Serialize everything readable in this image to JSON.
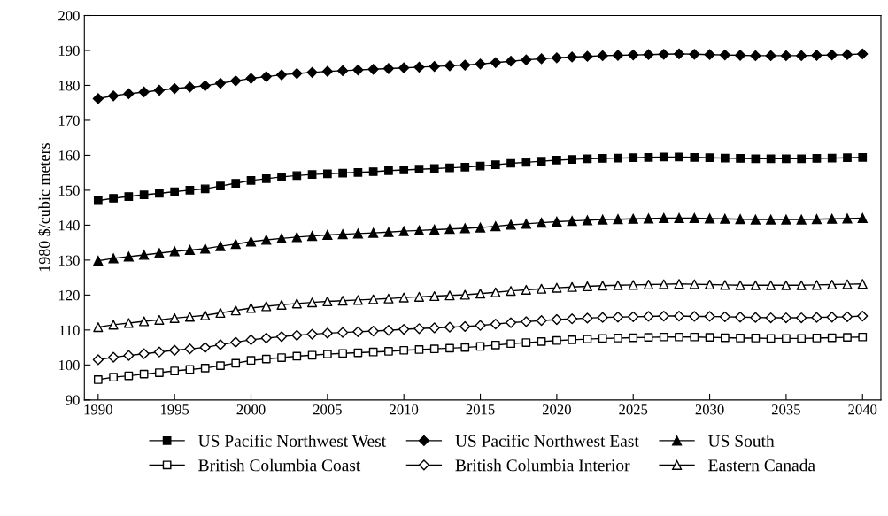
{
  "chart_data": {
    "type": "line",
    "ylabel": "1980 $/cubic meters",
    "x": [
      1990,
      1991,
      1992,
      1993,
      1994,
      1995,
      1996,
      1997,
      1998,
      1999,
      2000,
      2001,
      2002,
      2003,
      2004,
      2005,
      2006,
      2007,
      2008,
      2009,
      2010,
      2011,
      2012,
      2013,
      2014,
      2015,
      2016,
      2017,
      2018,
      2019,
      2020,
      2021,
      2022,
      2023,
      2024,
      2025,
      2026,
      2027,
      2028,
      2029,
      2030,
      2031,
      2032,
      2033,
      2034,
      2035,
      2036,
      2037,
      2038,
      2039,
      2040
    ],
    "xlim": [
      1989.1,
      2041.2
    ],
    "xticks": [
      1990,
      1995,
      2000,
      2005,
      2010,
      2015,
      2020,
      2025,
      2030,
      2035,
      2040
    ],
    "ylim": [
      90,
      200
    ],
    "yticks": [
      90,
      100,
      110,
      120,
      130,
      140,
      150,
      160,
      170,
      180,
      190,
      200
    ],
    "grid": false,
    "legend": "bottom",
    "line_style": "solid",
    "series": [
      {
        "name": "US Pacific Northwest West",
        "color": "#000000",
        "marker": "square",
        "values": [
          147,
          147.7,
          148.2,
          148.7,
          149.1,
          149.6,
          150,
          150.4,
          151.2,
          152,
          152.8,
          153.3,
          153.8,
          154.2,
          154.5,
          154.7,
          154.9,
          155.1,
          155.3,
          155.6,
          155.8,
          156,
          156.2,
          156.4,
          156.6,
          156.9,
          157.3,
          157.7,
          158,
          158.3,
          158.6,
          158.8,
          159,
          159.1,
          159.2,
          159.3,
          159.4,
          159.5,
          159.5,
          159.4,
          159.3,
          159.2,
          159.1,
          159,
          159,
          159,
          159,
          159.1,
          159.2,
          159.3,
          159.4
        ]
      },
      {
        "name": "US Pacific Northwest East",
        "color": "#000000",
        "marker": "diamond",
        "values": [
          176.2,
          177,
          177.6,
          178.1,
          178.6,
          179.1,
          179.5,
          179.9,
          180.6,
          181.3,
          182,
          182.5,
          183,
          183.4,
          183.7,
          184,
          184.2,
          184.4,
          184.6,
          184.8,
          185,
          185.2,
          185.4,
          185.6,
          185.8,
          186.1,
          186.5,
          186.9,
          187.3,
          187.6,
          187.9,
          188.1,
          188.3,
          188.5,
          188.6,
          188.7,
          188.8,
          188.9,
          189,
          188.9,
          188.8,
          188.7,
          188.6,
          188.5,
          188.5,
          188.5,
          188.5,
          188.6,
          188.7,
          188.8,
          189
        ]
      },
      {
        "name": "US South",
        "color": "#000000",
        "marker": "triangle",
        "values": [
          129.8,
          130.5,
          131,
          131.5,
          132,
          132.5,
          132.9,
          133.3,
          134,
          134.6,
          135.3,
          135.8,
          136.2,
          136.6,
          136.9,
          137.2,
          137.4,
          137.6,
          137.8,
          138,
          138.3,
          138.5,
          138.7,
          138.9,
          139.1,
          139.3,
          139.7,
          140.1,
          140.4,
          140.7,
          141,
          141.2,
          141.4,
          141.6,
          141.7,
          141.8,
          141.9,
          142,
          142,
          142,
          141.9,
          141.8,
          141.7,
          141.6,
          141.6,
          141.6,
          141.6,
          141.7,
          141.8,
          141.9,
          142
        ]
      },
      {
        "name": "British Columbia Coast",
        "color": "#000000",
        "marker": "square",
        "colors": [
          "#ffffff",
          "#ffffff",
          "#ffffff",
          "#ffffff",
          "#ffffff",
          "#ffffff",
          "#ffffff",
          "#ffffff",
          "#ffffff",
          "#ffffff",
          "#ffffff",
          "#ffffff",
          "#ffffff",
          "#ffffff",
          "#ffffff",
          "#ffffff",
          "#ffffff",
          "#ffffff",
          "#ffffff",
          "#ffffff",
          "#ffffff",
          "#ffffff",
          "#ffffff",
          "#ffffff",
          "#ffffff",
          "#ffffff",
          "#ffffff",
          "#ffffff",
          "#ffffff",
          "#ffffff",
          "#ffffff",
          "#ffffff",
          "#ffffff",
          "#ffffff",
          "#ffffff",
          "#ffffff",
          "#ffffff",
          "#ffffff",
          "#ffffff",
          "#ffffff",
          "#ffffff",
          "#ffffff",
          "#ffffff",
          "#ffffff",
          "#ffffff",
          "#ffffff",
          "#ffffff",
          "#ffffff",
          "#ffffff",
          "#ffffff",
          "#ffffff"
        ],
        "values": [
          95.8,
          96.5,
          96.9,
          97.4,
          97.8,
          98.3,
          98.7,
          99.1,
          99.8,
          100.5,
          101.3,
          101.7,
          102.1,
          102.5,
          102.8,
          103.1,
          103.3,
          103.5,
          103.7,
          103.9,
          104.2,
          104.4,
          104.6,
          104.8,
          105,
          105.3,
          105.7,
          106.1,
          106.4,
          106.7,
          107,
          107.2,
          107.4,
          107.6,
          107.7,
          107.8,
          107.9,
          108,
          108,
          108,
          107.9,
          107.8,
          107.7,
          107.7,
          107.6,
          107.6,
          107.6,
          107.7,
          107.8,
          107.9,
          108
        ]
      },
      {
        "name": "British Columbia Interior",
        "color": "#000000",
        "marker": "diamond",
        "colors": [
          "#ffffff",
          "#ffffff",
          "#ffffff",
          "#ffffff",
          "#ffffff",
          "#ffffff",
          "#ffffff",
          "#ffffff",
          "#ffffff",
          "#ffffff",
          "#ffffff",
          "#ffffff",
          "#ffffff",
          "#ffffff",
          "#ffffff",
          "#ffffff",
          "#ffffff",
          "#ffffff",
          "#ffffff",
          "#ffffff",
          "#ffffff",
          "#ffffff",
          "#ffffff",
          "#ffffff",
          "#ffffff",
          "#ffffff",
          "#ffffff",
          "#ffffff",
          "#ffffff",
          "#ffffff",
          "#ffffff",
          "#ffffff",
          "#ffffff",
          "#ffffff",
          "#ffffff",
          "#ffffff",
          "#ffffff",
          "#ffffff",
          "#ffffff",
          "#ffffff",
          "#ffffff",
          "#ffffff",
          "#ffffff",
          "#ffffff",
          "#ffffff",
          "#ffffff",
          "#ffffff",
          "#ffffff",
          "#ffffff",
          "#ffffff",
          "#ffffff"
        ],
        "values": [
          101.5,
          102.2,
          102.7,
          103.2,
          103.7,
          104.2,
          104.6,
          105,
          105.8,
          106.5,
          107.2,
          107.7,
          108.1,
          108.5,
          108.8,
          109.1,
          109.3,
          109.5,
          109.7,
          109.9,
          110.2,
          110.4,
          110.6,
          110.8,
          111,
          111.3,
          111.7,
          112.1,
          112.4,
          112.7,
          113,
          113.2,
          113.4,
          113.6,
          113.7,
          113.8,
          113.9,
          114,
          114,
          113.9,
          113.9,
          113.8,
          113.7,
          113.6,
          113.5,
          113.5,
          113.5,
          113.6,
          113.7,
          113.8,
          114
        ]
      },
      {
        "name": "Eastern Canada",
        "color": "#000000",
        "marker": "triangle",
        "colors": [
          "#ffffff",
          "#ffffff",
          "#ffffff",
          "#ffffff",
          "#ffffff",
          "#ffffff",
          "#ffffff",
          "#ffffff",
          "#ffffff",
          "#ffffff",
          "#ffffff",
          "#ffffff",
          "#ffffff",
          "#ffffff",
          "#ffffff",
          "#ffffff",
          "#ffffff",
          "#ffffff",
          "#ffffff",
          "#ffffff",
          "#ffffff",
          "#ffffff",
          "#ffffff",
          "#ffffff",
          "#ffffff",
          "#ffffff",
          "#ffffff",
          "#ffffff",
          "#ffffff",
          "#ffffff",
          "#ffffff",
          "#ffffff",
          "#ffffff",
          "#ffffff",
          "#ffffff",
          "#ffffff",
          "#ffffff",
          "#ffffff",
          "#ffffff",
          "#ffffff",
          "#ffffff",
          "#ffffff",
          "#ffffff",
          "#ffffff",
          "#ffffff",
          "#ffffff",
          "#ffffff",
          "#ffffff",
          "#ffffff",
          "#ffffff",
          "#ffffff"
        ],
        "values": [
          110.8,
          111.5,
          112,
          112.5,
          112.9,
          113.4,
          113.8,
          114.2,
          114.9,
          115.6,
          116.3,
          116.8,
          117.2,
          117.6,
          117.9,
          118.2,
          118.4,
          118.6,
          118.8,
          119,
          119.3,
          119.5,
          119.7,
          119.9,
          120.1,
          120.4,
          120.8,
          121.2,
          121.5,
          121.8,
          122.1,
          122.3,
          122.5,
          122.7,
          122.8,
          122.9,
          123,
          123.1,
          123.2,
          123.1,
          123,
          122.9,
          122.8,
          122.8,
          122.8,
          122.8,
          122.8,
          122.9,
          123,
          123.1,
          123.2
        ]
      }
    ]
  }
}
